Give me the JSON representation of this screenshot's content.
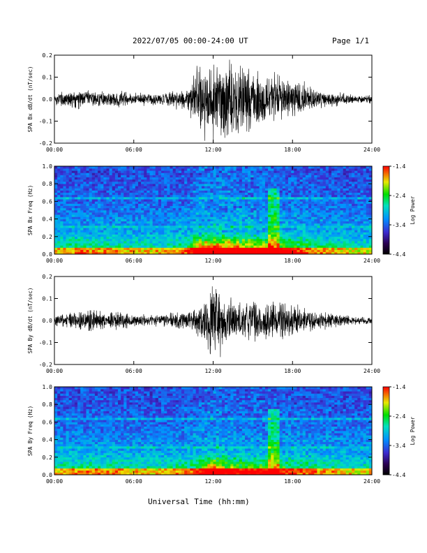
{
  "header": {
    "date_range": "2022/07/05  00:00-24:00 UT",
    "page": "Page 1/1"
  },
  "xlabel": "Universal Time (hh:mm)",
  "chart_data": [
    {
      "type": "line",
      "ylabel": "SPA Bx dB/dt (nT/sec)",
      "xlim": [
        0,
        24
      ],
      "ylim": [
        -0.2,
        0.2
      ],
      "yticks": [
        "0.2",
        "0.1",
        "0.0",
        "-0.1",
        "-0.2"
      ],
      "xticks": [
        "00:00",
        "06:00",
        "12:00",
        "18:00",
        "24:00"
      ],
      "envelope_x_hours": [
        0,
        1,
        2,
        3,
        4,
        5,
        6,
        7,
        8,
        9,
        10,
        11,
        12,
        13,
        14,
        15,
        16,
        17,
        18,
        19,
        20,
        21,
        22,
        23,
        24
      ],
      "envelope_amplitude": [
        0.03,
        0.05,
        0.05,
        0.04,
        0.04,
        0.04,
        0.03,
        0.03,
        0.03,
        0.04,
        0.05,
        0.2,
        0.2,
        0.2,
        0.18,
        0.15,
        0.15,
        0.12,
        0.1,
        0.07,
        0.05,
        0.04,
        0.03,
        0.02,
        0.02
      ]
    },
    {
      "type": "heatmap",
      "ylabel": "SPA Bx Freq (Hz)",
      "xlim": [
        0,
        24
      ],
      "ylim": [
        0.0,
        1.0
      ],
      "yticks": [
        "1.0",
        "0.8",
        "0.6",
        "0.4",
        "0.2",
        "0.0"
      ],
      "xticks": [
        "00:00",
        "06:00",
        "12:00",
        "18:00",
        "24:00"
      ],
      "colorbar": {
        "label": "Log Power",
        "ticks": [
          "-1.4",
          "-2.4",
          "-3.4",
          "-4.4"
        ],
        "range": [
          -4.4,
          -1.4
        ]
      }
    },
    {
      "type": "line",
      "ylabel": "SPA By dB/dt (nT/sec)",
      "xlim": [
        0,
        24
      ],
      "ylim": [
        -0.2,
        0.2
      ],
      "yticks": [
        "0.2",
        "0.1",
        "0.0",
        "-0.1",
        "-0.2"
      ],
      "xticks": [
        "00:00",
        "06:00",
        "12:00",
        "18:00",
        "24:00"
      ],
      "envelope_x_hours": [
        0,
        1,
        2,
        3,
        4,
        5,
        6,
        7,
        8,
        9,
        10,
        11,
        12,
        13,
        14,
        15,
        16,
        17,
        18,
        19,
        20,
        21,
        22,
        23,
        24
      ],
      "envelope_amplitude": [
        0.03,
        0.04,
        0.05,
        0.06,
        0.04,
        0.05,
        0.03,
        0.03,
        0.03,
        0.04,
        0.05,
        0.08,
        0.2,
        0.12,
        0.1,
        0.1,
        0.1,
        0.09,
        0.08,
        0.06,
        0.05,
        0.04,
        0.03,
        0.02,
        0.02
      ]
    },
    {
      "type": "heatmap",
      "ylabel": "SPA By Freq (Hz)",
      "xlim": [
        0,
        24
      ],
      "ylim": [
        0.0,
        1.0
      ],
      "yticks": [
        "1.0",
        "0.8",
        "0.6",
        "0.4",
        "0.2",
        "0.0"
      ],
      "xticks": [
        "00:00",
        "06:00",
        "12:00",
        "18:00",
        "24:00"
      ],
      "colorbar": {
        "label": "Log Power",
        "ticks": [
          "-1.4",
          "-2.4",
          "-3.4",
          "-4.4"
        ],
        "range": [
          -4.4,
          -1.4
        ]
      }
    }
  ]
}
